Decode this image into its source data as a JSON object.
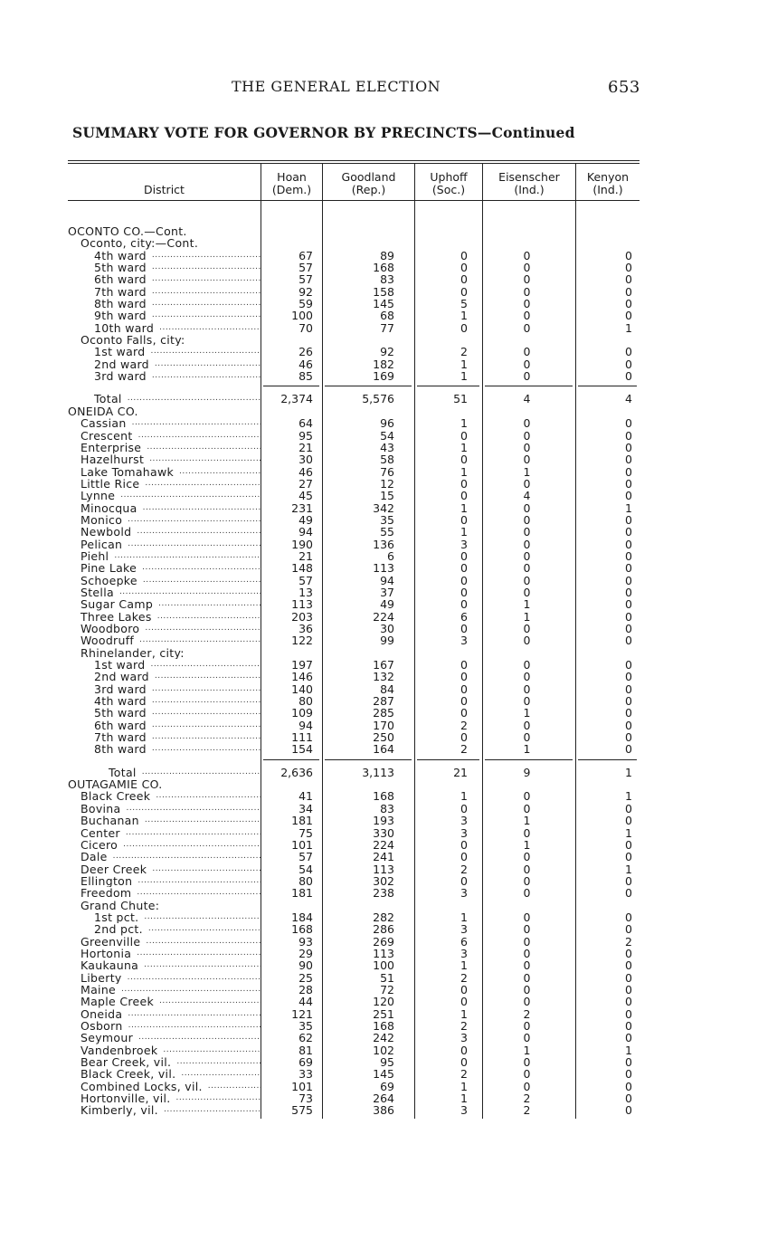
{
  "running_head": {
    "title": "THE GENERAL ELECTION",
    "page_number": "653"
  },
  "subtitle": "SUMMARY VOTE FOR GOVERNOR BY PRECINCTS—Continued",
  "columns": [
    {
      "name": "District",
      "party": ""
    },
    {
      "name": "Hoan",
      "party": "(Dem.)"
    },
    {
      "name": "Goodland",
      "party": "(Rep.)"
    },
    {
      "name": "Uphoff",
      "party": "(Soc.)"
    },
    {
      "name": "Eisenscher",
      "party": "(Ind.)"
    },
    {
      "name": "Kenyon",
      "party": "(Ind.)"
    }
  ],
  "rows": [
    {
      "label": "OCONTO CO.—Cont.",
      "level": 0,
      "type": "heading"
    },
    {
      "label": "Oconto, city:—Cont.",
      "level": 1,
      "type": "heading"
    },
    {
      "label": "4th ward",
      "level": 2,
      "values": [
        "67",
        "89",
        "0",
        "0",
        "0"
      ]
    },
    {
      "label": "5th ward",
      "level": 2,
      "values": [
        "57",
        "168",
        "0",
        "0",
        "0"
      ]
    },
    {
      "label": "6th ward",
      "level": 2,
      "values": [
        "57",
        "83",
        "0",
        "0",
        "0"
      ]
    },
    {
      "label": "7th ward",
      "level": 2,
      "values": [
        "92",
        "158",
        "0",
        "0",
        "0"
      ]
    },
    {
      "label": "8th ward",
      "level": 2,
      "values": [
        "59",
        "145",
        "5",
        "0",
        "0"
      ]
    },
    {
      "label": "9th ward",
      "level": 2,
      "values": [
        "100",
        "68",
        "1",
        "0",
        "0"
      ]
    },
    {
      "label": "10th ward",
      "level": 2,
      "values": [
        "70",
        "77",
        "0",
        "0",
        "1"
      ]
    },
    {
      "label": "Oconto Falls, city:",
      "level": 1,
      "type": "heading"
    },
    {
      "label": "1st ward",
      "level": 2,
      "values": [
        "26",
        "92",
        "2",
        "0",
        "0"
      ]
    },
    {
      "label": "2nd ward",
      "level": 2,
      "values": [
        "46",
        "182",
        "1",
        "0",
        "0"
      ]
    },
    {
      "label": "3rd ward",
      "level": 2,
      "values": [
        "85",
        "169",
        "1",
        "0",
        "0"
      ]
    },
    {
      "label": "Total",
      "level": 2,
      "type": "total",
      "values": [
        "2,374",
        "5,576",
        "51",
        "4",
        "4"
      ]
    },
    {
      "label": "ONEIDA CO.",
      "level": 0,
      "type": "heading"
    },
    {
      "label": "Cassian",
      "level": 1,
      "values": [
        "64",
        "96",
        "1",
        "0",
        "0"
      ]
    },
    {
      "label": "Crescent",
      "level": 1,
      "values": [
        "95",
        "54",
        "0",
        "0",
        "0"
      ]
    },
    {
      "label": "Enterprise",
      "level": 1,
      "values": [
        "21",
        "43",
        "1",
        "0",
        "0"
      ]
    },
    {
      "label": "Hazelhurst",
      "level": 1,
      "values": [
        "30",
        "58",
        "0",
        "0",
        "0"
      ]
    },
    {
      "label": "Lake Tomahawk",
      "level": 1,
      "values": [
        "46",
        "76",
        "1",
        "1",
        "0"
      ]
    },
    {
      "label": "Little Rice",
      "level": 1,
      "values": [
        "27",
        "12",
        "0",
        "0",
        "0"
      ]
    },
    {
      "label": "Lynne",
      "level": 1,
      "values": [
        "45",
        "15",
        "0",
        "4",
        "0"
      ]
    },
    {
      "label": "Minocqua",
      "level": 1,
      "values": [
        "231",
        "342",
        "1",
        "0",
        "1"
      ]
    },
    {
      "label": "Monico",
      "level": 1,
      "values": [
        "49",
        "35",
        "0",
        "0",
        "0"
      ]
    },
    {
      "label": "Newbold",
      "level": 1,
      "values": [
        "94",
        "55",
        "1",
        "0",
        "0"
      ]
    },
    {
      "label": "Pelican",
      "level": 1,
      "values": [
        "190",
        "136",
        "3",
        "0",
        "0"
      ]
    },
    {
      "label": "Piehl",
      "level": 1,
      "values": [
        "21",
        "6",
        "0",
        "0",
        "0"
      ]
    },
    {
      "label": "Pine Lake",
      "level": 1,
      "values": [
        "148",
        "113",
        "0",
        "0",
        "0"
      ]
    },
    {
      "label": "Schoepke",
      "level": 1,
      "values": [
        "57",
        "94",
        "0",
        "0",
        "0"
      ]
    },
    {
      "label": "Stella",
      "level": 1,
      "values": [
        "13",
        "37",
        "0",
        "0",
        "0"
      ]
    },
    {
      "label": "Sugar Camp",
      "level": 1,
      "values": [
        "113",
        "49",
        "0",
        "1",
        "0"
      ]
    },
    {
      "label": "Three Lakes",
      "level": 1,
      "values": [
        "203",
        "224",
        "6",
        "1",
        "0"
      ]
    },
    {
      "label": "Woodboro",
      "level": 1,
      "values": [
        "36",
        "30",
        "0",
        "0",
        "0"
      ]
    },
    {
      "label": "Woodruff",
      "level": 1,
      "values": [
        "122",
        "99",
        "3",
        "0",
        "0"
      ]
    },
    {
      "label": "Rhinelander, city:",
      "level": 1,
      "type": "heading"
    },
    {
      "label": "1st ward",
      "level": 2,
      "values": [
        "197",
        "167",
        "0",
        "0",
        "0"
      ]
    },
    {
      "label": "2nd ward",
      "level": 2,
      "values": [
        "146",
        "132",
        "0",
        "0",
        "0"
      ]
    },
    {
      "label": "3rd ward",
      "level": 2,
      "values": [
        "140",
        "84",
        "0",
        "0",
        "0"
      ]
    },
    {
      "label": "4th ward",
      "level": 2,
      "values": [
        "80",
        "287",
        "0",
        "0",
        "0"
      ]
    },
    {
      "label": "5th ward",
      "level": 2,
      "values": [
        "109",
        "285",
        "0",
        "1",
        "0"
      ]
    },
    {
      "label": "6th ward",
      "level": 2,
      "values": [
        "94",
        "170",
        "2",
        "0",
        "0"
      ]
    },
    {
      "label": "7th ward",
      "level": 2,
      "values": [
        "111",
        "250",
        "0",
        "0",
        "0"
      ]
    },
    {
      "label": "8th ward",
      "level": 2,
      "values": [
        "154",
        "164",
        "2",
        "1",
        "0"
      ]
    },
    {
      "label": "Total",
      "level": 3,
      "type": "total",
      "values": [
        "2,636",
        "3,113",
        "21",
        "9",
        "1"
      ]
    },
    {
      "label": "OUTAGAMIE CO.",
      "level": 0,
      "type": "heading"
    },
    {
      "label": "Black Creek",
      "level": 1,
      "values": [
        "41",
        "168",
        "1",
        "0",
        "1"
      ]
    },
    {
      "label": "Bovina",
      "level": 1,
      "values": [
        "34",
        "83",
        "0",
        "0",
        "0"
      ]
    },
    {
      "label": "Buchanan",
      "level": 1,
      "values": [
        "181",
        "193",
        "3",
        "1",
        "0"
      ]
    },
    {
      "label": "Center",
      "level": 1,
      "values": [
        "75",
        "330",
        "3",
        "0",
        "1"
      ]
    },
    {
      "label": "Cicero",
      "level": 1,
      "values": [
        "101",
        "224",
        "0",
        "1",
        "0"
      ]
    },
    {
      "label": "Dale",
      "level": 1,
      "values": [
        "57",
        "241",
        "0",
        "0",
        "0"
      ]
    },
    {
      "label": "Deer Creek",
      "level": 1,
      "values": [
        "54",
        "113",
        "2",
        "0",
        "1"
      ]
    },
    {
      "label": "Ellington",
      "level": 1,
      "values": [
        "80",
        "302",
        "0",
        "0",
        "0"
      ]
    },
    {
      "label": "Freedom",
      "level": 1,
      "values": [
        "181",
        "238",
        "3",
        "0",
        "0"
      ]
    },
    {
      "label": "Grand Chute:",
      "level": 1,
      "type": "heading"
    },
    {
      "label": "1st pct.",
      "level": 2,
      "values": [
        "184",
        "282",
        "1",
        "0",
        "0"
      ]
    },
    {
      "label": "2nd pct.",
      "level": 2,
      "values": [
        "168",
        "286",
        "3",
        "0",
        "0"
      ]
    },
    {
      "label": "Greenville",
      "level": 1,
      "values": [
        "93",
        "269",
        "6",
        "0",
        "2"
      ]
    },
    {
      "label": "Hortonia",
      "level": 1,
      "values": [
        "29",
        "113",
        "3",
        "0",
        "0"
      ]
    },
    {
      "label": "Kaukauna",
      "level": 1,
      "values": [
        "90",
        "100",
        "1",
        "0",
        "0"
      ]
    },
    {
      "label": "Liberty",
      "level": 1,
      "values": [
        "25",
        "51",
        "2",
        "0",
        "0"
      ]
    },
    {
      "label": "Maine",
      "level": 1,
      "values": [
        "28",
        "72",
        "0",
        "0",
        "0"
      ]
    },
    {
      "label": "Maple Creek",
      "level": 1,
      "values": [
        "44",
        "120",
        "0",
        "0",
        "0"
      ]
    },
    {
      "label": "Oneida",
      "level": 1,
      "values": [
        "121",
        "251",
        "1",
        "2",
        "0"
      ]
    },
    {
      "label": "Osborn",
      "level": 1,
      "values": [
        "35",
        "168",
        "2",
        "0",
        "0"
      ]
    },
    {
      "label": "Seymour",
      "level": 1,
      "values": [
        "62",
        "242",
        "3",
        "0",
        "0"
      ]
    },
    {
      "label": "Vandenbroek",
      "level": 1,
      "values": [
        "81",
        "102",
        "0",
        "1",
        "1"
      ]
    },
    {
      "label": "Bear Creek, vil.",
      "level": 1,
      "values": [
        "69",
        "95",
        "0",
        "0",
        "0"
      ]
    },
    {
      "label": "Black Creek, vil.",
      "level": 1,
      "values": [
        "33",
        "145",
        "2",
        "0",
        "0"
      ]
    },
    {
      "label": "Combined Locks, vil.",
      "level": 1,
      "values": [
        "101",
        "69",
        "1",
        "0",
        "0"
      ]
    },
    {
      "label": "Hortonville, vil.",
      "level": 1,
      "values": [
        "73",
        "264",
        "1",
        "2",
        "0"
      ]
    },
    {
      "label": "Kimberly, vil.",
      "level": 1,
      "values": [
        "575",
        "386",
        "3",
        "2",
        "0"
      ]
    }
  ]
}
